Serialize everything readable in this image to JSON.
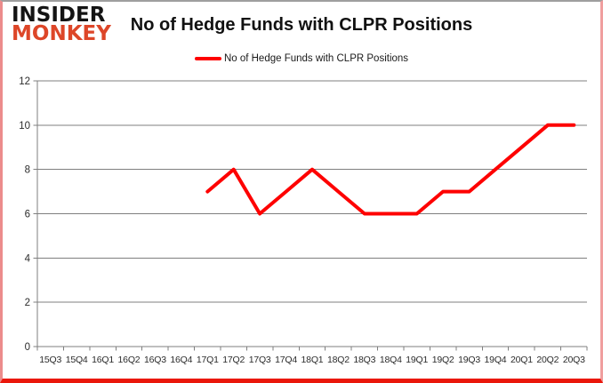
{
  "logo": {
    "line1": "INSIDER",
    "line2": "MONKEY",
    "line1_color": "#141414",
    "line2_color": "#dd4628"
  },
  "header": {
    "title": "No of Hedge Funds with CLPR Positions"
  },
  "legend": {
    "label": "No of Hedge Funds with CLPR Positions",
    "swatch_color": "#fe0000"
  },
  "colors": {
    "series_line": "#fe0000",
    "gridline": "#7f7f7f",
    "axis": "#7f7f7f",
    "tick_label": "#2b2b2b",
    "background": "#ffffff",
    "frame_top": "#9e9e9e",
    "frame_left": "#ec8c8c",
    "frame_right": "#f09e9e",
    "frame_bottom": "#ea170b"
  },
  "chart_data": {
    "type": "line",
    "title": "No of Hedge Funds with CLPR Positions",
    "xlabel": "",
    "ylabel": "",
    "categories": [
      "15Q3",
      "15Q4",
      "16Q1",
      "16Q2",
      "16Q3",
      "16Q4",
      "17Q1",
      "17Q2",
      "17Q3",
      "17Q4",
      "18Q1",
      "18Q2",
      "18Q3",
      "18Q4",
      "19Q1",
      "19Q2",
      "19Q3",
      "19Q4",
      "20Q1",
      "20Q2",
      "20Q3"
    ],
    "series": [
      {
        "name": "No of Hedge Funds with CLPR Positions",
        "color": "#fe0000",
        "values": [
          null,
          null,
          null,
          null,
          null,
          null,
          7,
          8,
          6,
          7,
          8,
          7,
          6,
          6,
          6,
          7,
          7,
          8,
          9,
          10,
          10
        ]
      }
    ],
    "ylim": [
      0,
      12
    ],
    "ytick_step": 2,
    "yticks": [
      0,
      2,
      4,
      6,
      8,
      10,
      12
    ],
    "grid": true,
    "legend_position": "top"
  }
}
